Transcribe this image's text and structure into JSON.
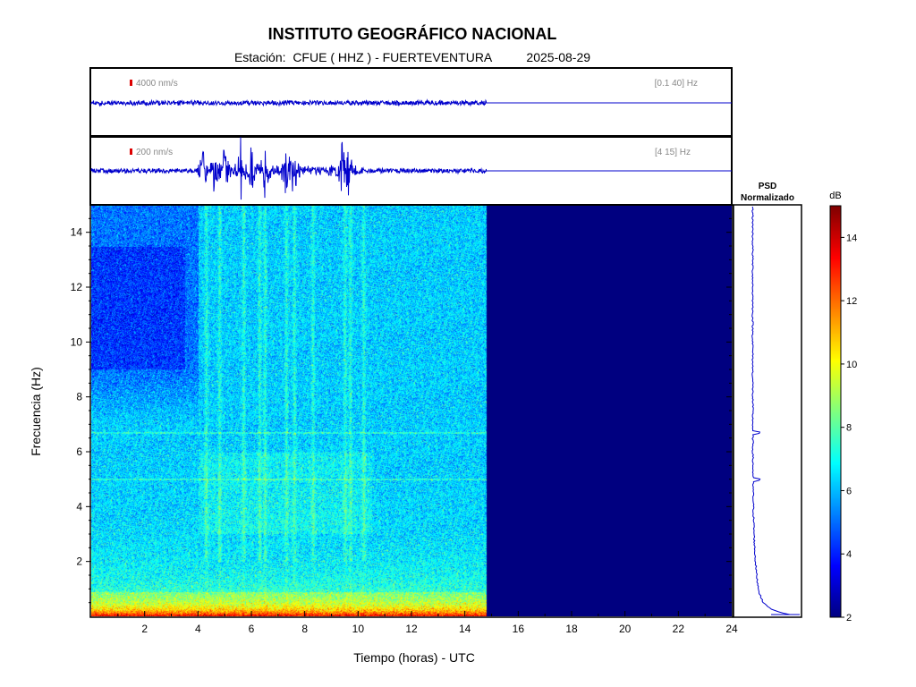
{
  "header": {
    "title": "INSTITUTO GEOGRÁFICO NACIONAL",
    "station_label": "Estación:",
    "station": "CFUE ( HHZ ) - FUERTEVENTURA",
    "date": "2025-08-29"
  },
  "colors": {
    "trace": "#0000cc",
    "scale_marker": "#dd0000",
    "no_data": "#000080"
  },
  "chart_data": [
    {
      "type": "line",
      "name": "seismogram-broadband",
      "scale_label": "4000 nm/s",
      "filter_label": "[0.1 40] Hz",
      "data_end_hour": 14.8
    },
    {
      "type": "line",
      "name": "seismogram-filtered",
      "scale_label": "200 nm/s",
      "filter_label": "[4 15] Hz",
      "data_end_hour": 14.8,
      "burst_hours": [
        4.2,
        4.6,
        5.0,
        5.6,
        6.0,
        6.5,
        7.3,
        7.6,
        9.4,
        9.6
      ]
    },
    {
      "type": "heatmap",
      "name": "spectrogram",
      "xlabel": "Tiempo (horas) - UTC",
      "ylabel": "Frecuencia  (Hz)",
      "xlim": [
        0,
        24
      ],
      "ylim": [
        0,
        15
      ],
      "xticks": [
        2,
        4,
        6,
        8,
        10,
        12,
        14,
        16,
        18,
        20,
        22,
        24
      ],
      "yticks": [
        2,
        4,
        6,
        8,
        10,
        12,
        14
      ],
      "data_end_hour": 14.8,
      "vertical_bands_hours": [
        4.3,
        4.8,
        5.7,
        6.3,
        6.5,
        7.3,
        7.6,
        8.3,
        9.5,
        9.7,
        10.2
      ],
      "horizontal_lines_hz": [
        5.0,
        6.7
      ]
    },
    {
      "type": "line",
      "name": "psd-normalizado",
      "title": "PSD\nNormalizado",
      "peaks_hz": [
        5.0,
        6.7
      ]
    },
    {
      "type": "heatmap",
      "name": "colorbar",
      "unit_label": "dB",
      "range": [
        2,
        15
      ],
      "ticks": [
        2,
        4,
        6,
        8,
        10,
        12,
        14
      ]
    }
  ]
}
